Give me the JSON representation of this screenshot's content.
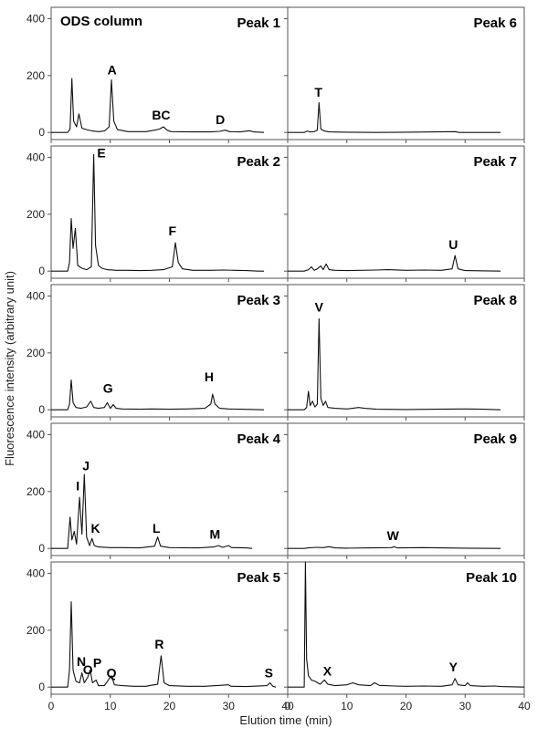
{
  "column_label": "ODS column",
  "xlabel": "Elution time (min)",
  "ylabel": "Fluorescence intensity (arbitrary unit)",
  "chart_data": [
    {
      "type": "line",
      "title": "Peak 1",
      "xlim": [
        0,
        40
      ],
      "ylim": [
        -25,
        440
      ],
      "yticks": [
        0,
        200,
        400
      ],
      "xticks": [
        0,
        10,
        20,
        30,
        40
      ],
      "points": [
        [
          0,
          0
        ],
        [
          2.8,
          0
        ],
        [
          3.2,
          12
        ],
        [
          3.5,
          190
        ],
        [
          3.8,
          40
        ],
        [
          4.3,
          20
        ],
        [
          4.7,
          65
        ],
        [
          5.2,
          15
        ],
        [
          6,
          10
        ],
        [
          7,
          5
        ],
        [
          8,
          3
        ],
        [
          9,
          5
        ],
        [
          9.8,
          20
        ],
        [
          10.2,
          185
        ],
        [
          10.6,
          40
        ],
        [
          11.2,
          10
        ],
        [
          13,
          3
        ],
        [
          16,
          3
        ],
        [
          17.5,
          8
        ],
        [
          18.3,
          12
        ],
        [
          19,
          20
        ],
        [
          19.6,
          8
        ],
        [
          20.3,
          3
        ],
        [
          24,
          2
        ],
        [
          27,
          2
        ],
        [
          28.5,
          4
        ],
        [
          29.4,
          8
        ],
        [
          30.2,
          3
        ],
        [
          32,
          2
        ],
        [
          33.5,
          6
        ],
        [
          34.3,
          2
        ],
        [
          36,
          0
        ]
      ],
      "labels": [
        {
          "text": "A",
          "x": 10.3,
          "y": 205
        },
        {
          "text": "BC",
          "x": 18.6,
          "y": 45
        },
        {
          "text": "D",
          "x": 28.6,
          "y": 30
        }
      ]
    },
    {
      "type": "line",
      "title": "Peak 6",
      "xlim": [
        0,
        40
      ],
      "ylim": [
        -25,
        440
      ],
      "yticks": [
        0,
        200,
        400
      ],
      "xticks": [
        0,
        10,
        20,
        30,
        40
      ],
      "points": [
        [
          0,
          0
        ],
        [
          2.8,
          0
        ],
        [
          3.3,
          5
        ],
        [
          3.8,
          2
        ],
        [
          4.5,
          3
        ],
        [
          5,
          8
        ],
        [
          5.3,
          105
        ],
        [
          5.6,
          12
        ],
        [
          6.2,
          5
        ],
        [
          7,
          2
        ],
        [
          10,
          1
        ],
        [
          15,
          0
        ],
        [
          20,
          1
        ],
        [
          28.3,
          3
        ],
        [
          29,
          0
        ],
        [
          36,
          0
        ]
      ],
      "labels": [
        {
          "text": "T",
          "x": 5.2,
          "y": 125
        }
      ]
    },
    {
      "type": "line",
      "title": "Peak 2",
      "xlim": [
        0,
        40
      ],
      "ylim": [
        -25,
        440
      ],
      "yticks": [
        0,
        200,
        400
      ],
      "xticks": [
        0,
        10,
        20,
        30,
        40
      ],
      "points": [
        [
          0,
          0
        ],
        [
          2.8,
          0
        ],
        [
          3.1,
          30
        ],
        [
          3.4,
          185
        ],
        [
          3.7,
          80
        ],
        [
          4.1,
          150
        ],
        [
          4.5,
          20
        ],
        [
          5.2,
          10
        ],
        [
          6,
          5
        ],
        [
          6.8,
          15
        ],
        [
          7.2,
          410
        ],
        [
          7.5,
          90
        ],
        [
          8,
          20
        ],
        [
          8.6,
          10
        ],
        [
          9.5,
          5
        ],
        [
          11,
          3
        ],
        [
          13,
          3
        ],
        [
          15,
          2
        ],
        [
          17,
          3
        ],
        [
          19,
          5
        ],
        [
          20.5,
          15
        ],
        [
          21,
          100
        ],
        [
          21.5,
          30
        ],
        [
          22.2,
          8
        ],
        [
          24,
          3
        ],
        [
          27,
          3
        ],
        [
          29,
          4
        ],
        [
          31,
          3
        ],
        [
          33,
          2
        ],
        [
          35,
          0
        ],
        [
          36,
          0
        ]
      ],
      "labels": [
        {
          "text": "E",
          "x": 8.5,
          "y": 400
        },
        {
          "text": "F",
          "x": 20.5,
          "y": 125
        }
      ]
    },
    {
      "type": "line",
      "title": "Peak 7",
      "xlim": [
        0,
        40
      ],
      "ylim": [
        -25,
        440
      ],
      "yticks": [
        0,
        200,
        400
      ],
      "xticks": [
        0,
        10,
        20,
        30,
        40
      ],
      "points": [
        [
          0,
          0
        ],
        [
          2.8,
          0
        ],
        [
          3.5,
          5
        ],
        [
          4,
          15
        ],
        [
          4.5,
          3
        ],
        [
          5,
          8
        ],
        [
          5.6,
          18
        ],
        [
          6,
          5
        ],
        [
          6.5,
          25
        ],
        [
          7,
          5
        ],
        [
          8,
          3
        ],
        [
          10,
          2
        ],
        [
          15,
          4
        ],
        [
          17,
          5
        ],
        [
          20,
          3
        ],
        [
          23,
          4
        ],
        [
          26,
          3
        ],
        [
          27.8,
          8
        ],
        [
          28.3,
          55
        ],
        [
          28.8,
          8
        ],
        [
          30,
          2
        ],
        [
          36,
          0
        ]
      ],
      "labels": [
        {
          "text": "U",
          "x": 28,
          "y": 78
        }
      ]
    },
    {
      "type": "line",
      "title": "Peak 3",
      "xlim": [
        0,
        40
      ],
      "ylim": [
        -25,
        440
      ],
      "yticks": [
        0,
        200,
        400
      ],
      "xticks": [
        0,
        10,
        20,
        30,
        40
      ],
      "points": [
        [
          0,
          0
        ],
        [
          2.8,
          0
        ],
        [
          3.1,
          20
        ],
        [
          3.4,
          105
        ],
        [
          3.7,
          25
        ],
        [
          4.2,
          8
        ],
        [
          5,
          5
        ],
        [
          6,
          10
        ],
        [
          6.7,
          30
        ],
        [
          7.2,
          8
        ],
        [
          8,
          5
        ],
        [
          9,
          8
        ],
        [
          9.5,
          25
        ],
        [
          10,
          5
        ],
        [
          10.5,
          18
        ],
        [
          11,
          5
        ],
        [
          12,
          3
        ],
        [
          15,
          2
        ],
        [
          17,
          3
        ],
        [
          20,
          2
        ],
        [
          23,
          3
        ],
        [
          26,
          5
        ],
        [
          27,
          20
        ],
        [
          27.3,
          55
        ],
        [
          27.7,
          20
        ],
        [
          28.5,
          5
        ],
        [
          30,
          3
        ],
        [
          32,
          2
        ],
        [
          36,
          0
        ]
      ],
      "labels": [
        {
          "text": "G",
          "x": 9.6,
          "y": 60
        },
        {
          "text": "H",
          "x": 26.7,
          "y": 100
        }
      ]
    },
    {
      "type": "line",
      "title": "Peak 8",
      "xlim": [
        0,
        40
      ],
      "ylim": [
        -25,
        440
      ],
      "yticks": [
        0,
        200,
        400
      ],
      "xticks": [
        0,
        10,
        20,
        30,
        40
      ],
      "points": [
        [
          0,
          0
        ],
        [
          2.8,
          0
        ],
        [
          3.2,
          8
        ],
        [
          3.5,
          65
        ],
        [
          3.8,
          15
        ],
        [
          4.2,
          30
        ],
        [
          4.6,
          10
        ],
        [
          5,
          20
        ],
        [
          5.3,
          320
        ],
        [
          5.6,
          40
        ],
        [
          6,
          15
        ],
        [
          6.4,
          30
        ],
        [
          6.8,
          8
        ],
        [
          8,
          5
        ],
        [
          10,
          3
        ],
        [
          12,
          8
        ],
        [
          13,
          5
        ],
        [
          15,
          2
        ],
        [
          20,
          1
        ],
        [
          25,
          2
        ],
        [
          30,
          3
        ],
        [
          33,
          2
        ],
        [
          36,
          0
        ]
      ],
      "labels": [
        {
          "text": "V",
          "x": 5.3,
          "y": 345
        }
      ]
    },
    {
      "type": "line",
      "title": "Peak 4",
      "xlim": [
        0,
        40
      ],
      "ylim": [
        -25,
        440
      ],
      "yticks": [
        0,
        200,
        400
      ],
      "xticks": [
        0,
        10,
        20,
        30,
        40
      ],
      "points": [
        [
          0,
          0
        ],
        [
          2.8,
          0
        ],
        [
          3.2,
          110
        ],
        [
          3.5,
          30
        ],
        [
          3.9,
          60
        ],
        [
          4.3,
          15
        ],
        [
          4.8,
          180
        ],
        [
          5.2,
          50
        ],
        [
          5.6,
          260
        ],
        [
          6,
          40
        ],
        [
          6.5,
          10
        ],
        [
          6.9,
          35
        ],
        [
          7.3,
          10
        ],
        [
          8,
          5
        ],
        [
          10,
          3
        ],
        [
          12,
          3
        ],
        [
          15,
          2
        ],
        [
          17.5,
          8
        ],
        [
          18,
          40
        ],
        [
          18.5,
          8
        ],
        [
          20,
          3
        ],
        [
          25,
          2
        ],
        [
          27.5,
          5
        ],
        [
          28.3,
          10
        ],
        [
          29,
          4
        ],
        [
          30,
          10
        ],
        [
          30.5,
          3
        ],
        [
          33,
          2
        ],
        [
          34,
          0
        ]
      ],
      "labels": [
        {
          "text": "I",
          "x": 4.5,
          "y": 205
        },
        {
          "text": "J",
          "x": 5.9,
          "y": 275
        },
        {
          "text": "K",
          "x": 7.5,
          "y": 55
        },
        {
          "text": "L",
          "x": 17.8,
          "y": 55
        },
        {
          "text": "M",
          "x": 27.7,
          "y": 35
        }
      ]
    },
    {
      "type": "line",
      "title": "Peak 9",
      "xlim": [
        0,
        40
      ],
      "ylim": [
        -25,
        440
      ],
      "yticks": [
        0,
        200,
        400
      ],
      "xticks": [
        0,
        10,
        20,
        30,
        40
      ],
      "points": [
        [
          0,
          0
        ],
        [
          2.8,
          0
        ],
        [
          3.5,
          2
        ],
        [
          5,
          4
        ],
        [
          6,
          3
        ],
        [
          7,
          6
        ],
        [
          8,
          2
        ],
        [
          10,
          1
        ],
        [
          14,
          2
        ],
        [
          17.5,
          3
        ],
        [
          18,
          6
        ],
        [
          18.5,
          2
        ],
        [
          23,
          3
        ],
        [
          26,
          2
        ],
        [
          30,
          1
        ],
        [
          36,
          0
        ]
      ],
      "labels": [
        {
          "text": "W",
          "x": 17.8,
          "y": 30
        }
      ]
    },
    {
      "type": "line",
      "title": "Peak 5",
      "xlim": [
        0,
        40
      ],
      "ylim": [
        -25,
        440
      ],
      "yticks": [
        0,
        200,
        400
      ],
      "xticks": [
        0,
        10,
        20,
        30,
        40
      ],
      "points": [
        [
          0,
          0
        ],
        [
          2.8,
          0
        ],
        [
          3.1,
          60
        ],
        [
          3.4,
          300
        ],
        [
          3.7,
          60
        ],
        [
          4.2,
          20
        ],
        [
          4.8,
          15
        ],
        [
          5.2,
          50
        ],
        [
          5.6,
          15
        ],
        [
          6.2,
          35
        ],
        [
          6.6,
          60
        ],
        [
          7,
          15
        ],
        [
          7.6,
          25
        ],
        [
          8,
          5
        ],
        [
          9,
          5
        ],
        [
          10.2,
          40
        ],
        [
          10.7,
          8
        ],
        [
          12,
          5
        ],
        [
          14,
          3
        ],
        [
          16,
          3
        ],
        [
          18,
          10
        ],
        [
          18.6,
          110
        ],
        [
          19.1,
          15
        ],
        [
          20,
          5
        ],
        [
          23,
          3
        ],
        [
          26,
          3
        ],
        [
          30,
          8
        ],
        [
          30.4,
          3
        ],
        [
          33,
          2
        ],
        [
          36.5,
          5
        ],
        [
          37,
          15
        ],
        [
          37.5,
          3
        ],
        [
          38,
          0
        ]
      ],
      "labels": [
        {
          "text": "N",
          "x": 5.1,
          "y": 75
        },
        {
          "text": "O",
          "x": 6.2,
          "y": 45
        },
        {
          "text": "P",
          "x": 7.8,
          "y": 70
        },
        {
          "text": "Q",
          "x": 10.2,
          "y": 35
        },
        {
          "text": "R",
          "x": 18.3,
          "y": 135
        },
        {
          "text": "S",
          "x": 36.8,
          "y": 35
        }
      ]
    },
    {
      "type": "line",
      "title": "Peak 10",
      "xlim": [
        0,
        40
      ],
      "ylim": [
        -25,
        440
      ],
      "yticks": [
        0,
        200,
        400
      ],
      "xticks": [
        0,
        10,
        20,
        30,
        40
      ],
      "points": [
        [
          0,
          0
        ],
        [
          2.8,
          0
        ],
        [
          3.0,
          440
        ],
        [
          3.2,
          100
        ],
        [
          3.5,
          40
        ],
        [
          4,
          25
        ],
        [
          4.7,
          20
        ],
        [
          5.5,
          10
        ],
        [
          6.2,
          25
        ],
        [
          6.8,
          10
        ],
        [
          8,
          5
        ],
        [
          10,
          8
        ],
        [
          11,
          15
        ],
        [
          12,
          8
        ],
        [
          14,
          5
        ],
        [
          14.7,
          15
        ],
        [
          15.5,
          6
        ],
        [
          18,
          4
        ],
        [
          20,
          3
        ],
        [
          23,
          4
        ],
        [
          26,
          3
        ],
        [
          27.8,
          8
        ],
        [
          28.3,
          30
        ],
        [
          28.8,
          8
        ],
        [
          30,
          5
        ],
        [
          30.4,
          15
        ],
        [
          30.9,
          5
        ],
        [
          33,
          3
        ],
        [
          35,
          4
        ],
        [
          36,
          2
        ],
        [
          40,
          0
        ]
      ],
      "labels": [
        {
          "text": "X",
          "x": 6.7,
          "y": 40
        },
        {
          "text": "Y",
          "x": 28,
          "y": 55
        }
      ]
    }
  ]
}
